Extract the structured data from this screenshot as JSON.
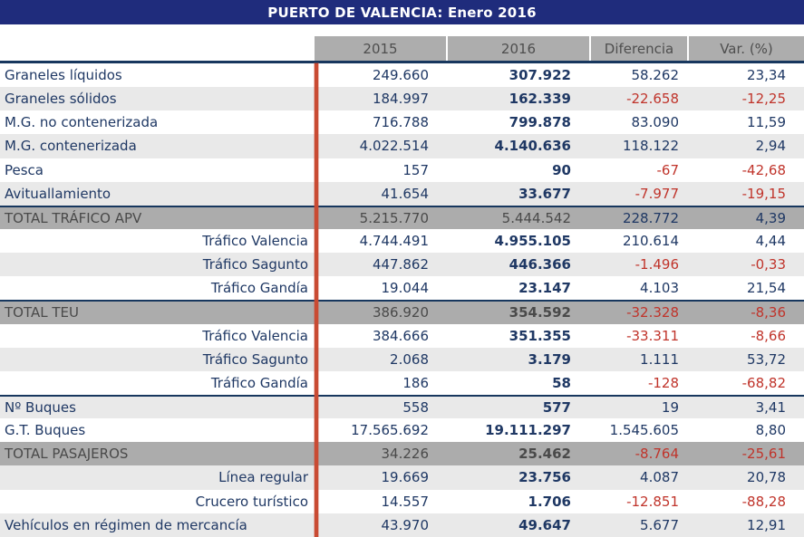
{
  "title": "PUERTO DE VALENCIA: Enero 2016",
  "colors": {
    "titlebar": "#1F2C7C",
    "navy": "#1F3864",
    "red": "#C0342B",
    "headerbg": "#ADADAD",
    "headertext": "#4E4E4E",
    "totalbg": "#ACACAC",
    "totaltext": "#4A4A4A",
    "stripe": "#E9E9E9",
    "divider": "#17375E",
    "redline": "#C94B33"
  },
  "table": {
    "columns": [
      "2015",
      "2016",
      "Diferencia",
      "Var. (%)"
    ],
    "rows": [
      {
        "label": "Graneles líquidos",
        "style": "data",
        "align": "left",
        "stripe": false,
        "divider": false,
        "bold2016": true,
        "values": [
          "249.660",
          "307.922",
          "58.262",
          "23,34"
        ]
      },
      {
        "label": "Graneles sólidos",
        "style": "data",
        "align": "left",
        "stripe": true,
        "divider": false,
        "bold2016": true,
        "values": [
          "184.997",
          "162.339",
          "-22.658",
          "-12,25"
        ]
      },
      {
        "label": "M.G. no contenerizada",
        "style": "data",
        "align": "left",
        "stripe": false,
        "divider": false,
        "bold2016": true,
        "values": [
          "716.788",
          "799.878",
          "83.090",
          "11,59"
        ]
      },
      {
        "label": "M.G. contenerizada",
        "style": "data",
        "align": "left",
        "stripe": true,
        "divider": false,
        "bold2016": true,
        "values": [
          "4.022.514",
          "4.140.636",
          "118.122",
          "2,94"
        ]
      },
      {
        "label": "Pesca",
        "style": "data",
        "align": "left",
        "stripe": false,
        "divider": false,
        "bold2016": true,
        "values": [
          "157",
          "90",
          "-67",
          "-42,68"
        ]
      },
      {
        "label": "Avituallamiento",
        "style": "data",
        "align": "left",
        "stripe": true,
        "divider": false,
        "bold2016": true,
        "values": [
          "41.654",
          "33.677",
          "-7.977",
          "-19,15"
        ]
      },
      {
        "label": "TOTAL TRÁFICO APV",
        "style": "total",
        "align": "left",
        "stripe": false,
        "divider": true,
        "bold2016": false,
        "values": [
          "5.215.770",
          "5.444.542",
          "228.772",
          "4,39"
        ]
      },
      {
        "label": "Tráfico Valencia",
        "style": "data",
        "align": "right",
        "stripe": false,
        "divider": false,
        "bold2016": true,
        "values": [
          "4.744.491",
          "4.955.105",
          "210.614",
          "4,44"
        ]
      },
      {
        "label": "Tráfico Sagunto",
        "style": "data",
        "align": "right",
        "stripe": true,
        "divider": false,
        "bold2016": true,
        "values": [
          "447.862",
          "446.366",
          "-1.496",
          "-0,33"
        ]
      },
      {
        "label": "Tráfico Gandía",
        "style": "data",
        "align": "right",
        "stripe": false,
        "divider": false,
        "bold2016": true,
        "values": [
          "19.044",
          "23.147",
          "4.103",
          "21,54"
        ]
      },
      {
        "label": "TOTAL TEU",
        "style": "total",
        "align": "left",
        "stripe": false,
        "divider": true,
        "bold2016": true,
        "values": [
          "386.920",
          "354.592",
          "-32.328",
          "-8,36"
        ]
      },
      {
        "label": "Tráfico Valencia",
        "style": "data",
        "align": "right",
        "stripe": false,
        "divider": false,
        "bold2016": true,
        "values": [
          "384.666",
          "351.355",
          "-33.311",
          "-8,66"
        ]
      },
      {
        "label": "Tráfico Sagunto",
        "style": "data",
        "align": "right",
        "stripe": true,
        "divider": false,
        "bold2016": true,
        "values": [
          "2.068",
          "3.179",
          "1.111",
          "53,72"
        ]
      },
      {
        "label": "Tráfico Gandía",
        "style": "data",
        "align": "right",
        "stripe": false,
        "divider": false,
        "bold2016": true,
        "values": [
          "186",
          "58",
          "-128",
          "-68,82"
        ]
      },
      {
        "label": "Nº Buques",
        "style": "data",
        "align": "left",
        "stripe": true,
        "divider": true,
        "bold2016": true,
        "values": [
          "558",
          "577",
          "19",
          "3,41"
        ]
      },
      {
        "label": "G.T. Buques",
        "style": "data",
        "align": "left",
        "stripe": false,
        "divider": false,
        "bold2016": true,
        "values": [
          "17.565.692",
          "19.111.297",
          "1.545.605",
          "8,80"
        ]
      },
      {
        "label": "TOTAL PASAJEROS",
        "style": "total",
        "align": "left",
        "stripe": false,
        "divider": false,
        "bold2016": true,
        "values": [
          "34.226",
          "25.462",
          "-8.764",
          "-25,61"
        ]
      },
      {
        "label": "Línea regular",
        "style": "data",
        "align": "right",
        "stripe": true,
        "divider": false,
        "bold2016": true,
        "values": [
          "19.669",
          "23.756",
          "4.087",
          "20,78"
        ]
      },
      {
        "label": "Crucero turístico",
        "style": "data",
        "align": "right",
        "stripe": false,
        "divider": false,
        "bold2016": true,
        "values": [
          "14.557",
          "1.706",
          "-12.851",
          "-88,28"
        ]
      },
      {
        "label": "Vehículos en régimen de mercancía",
        "style": "data",
        "align": "left",
        "stripe": true,
        "divider": false,
        "bold2016": true,
        "values": [
          "43.970",
          "49.647",
          "5.677",
          "12,91"
        ]
      }
    ]
  }
}
